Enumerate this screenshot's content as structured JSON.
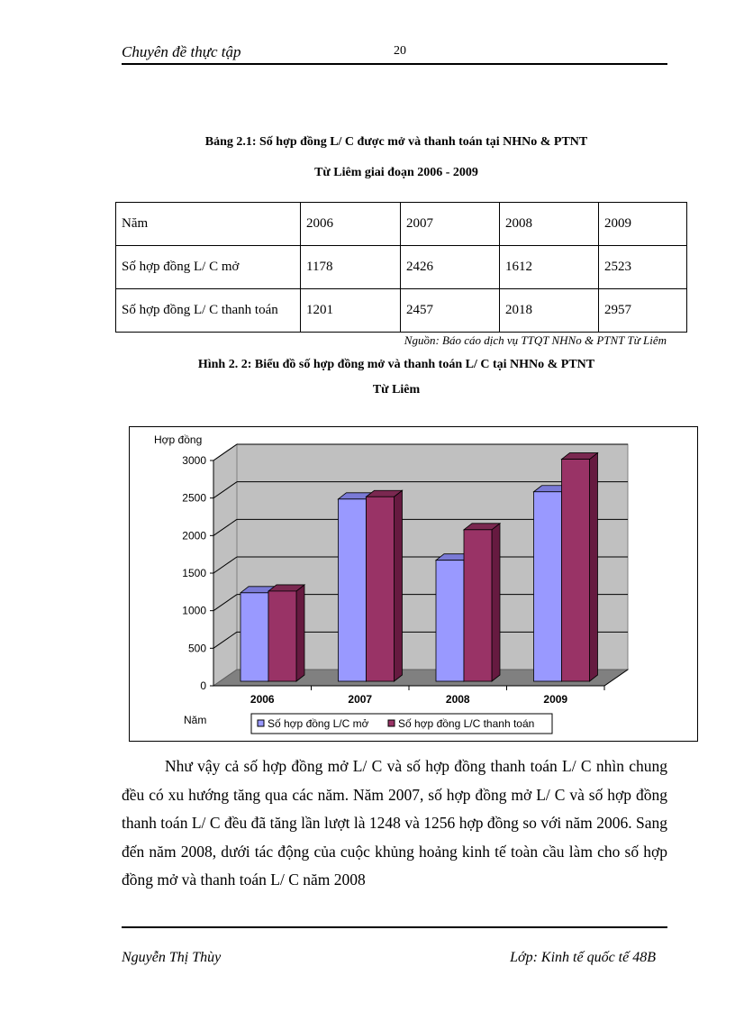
{
  "header": {
    "title": "Chuyên đề thực tập",
    "page_number": "20"
  },
  "table_caption": {
    "line1": "Bảng 2.1: Số hợp đồng L/ C được mở và thanh toán tại NHNo & PTNT",
    "line2": "Từ Liêm giai đoạn 2006 - 2009"
  },
  "table": {
    "header": [
      "Năm",
      "2006",
      "2007",
      "2008",
      "2009"
    ],
    "rows": [
      [
        "Số hợp đồng L/ C mở",
        "1178",
        "2426",
        "1612",
        "2523"
      ],
      [
        "Số hợp đồng L/ C thanh toán",
        "1201",
        "2457",
        "2018",
        "2957"
      ]
    ],
    "source": "Nguồn: Báo cáo dịch vụ TTQT  NHNo & PTNT Từ Liêm"
  },
  "figure_caption": {
    "line1": "Hình 2. 2: Biểu đồ số hợp đồng mở và thanh toán L/ C tại NHNo & PTNT",
    "line2": "Từ Liêm"
  },
  "chart_data": {
    "type": "bar",
    "style": "3d-clustered-column",
    "title": "",
    "xlabel": "Năm",
    "ylabel": "Hợp đồng",
    "categories": [
      "2006",
      "2007",
      "2008",
      "2009"
    ],
    "series": [
      {
        "name": "Số hợp đồng L/C mở",
        "values": [
          1178,
          2426,
          1612,
          2523
        ],
        "color": "#9999ff"
      },
      {
        "name": "Số hợp đồng L/C thanh toán",
        "values": [
          1201,
          2457,
          2018,
          2957
        ],
        "color": "#993366"
      }
    ],
    "ylim": [
      0,
      3000
    ],
    "yticks": [
      0,
      500,
      1000,
      1500,
      2000,
      2500,
      3000
    ],
    "grid": true,
    "legend_position": "bottom",
    "wall_color": "#c0c0c0",
    "floor_color": "#808080"
  },
  "body": {
    "paragraph": "Như vậy cả số hợp đồng mở L/ C và số hợp đồng thanh toán L/ C nhìn chung đều có xu hướng tăng qua các năm. Năm 2007, số hợp đồng mở L/ C và số hợp đồng thanh toán L/ C đều đã tăng lần lượt là 1248 và 1256 hợp đồng so với năm 2006. Sang đến năm 2008, dưới tác động của cuộc khủng hoảng kinh tế toàn cầu làm cho số hợp đồng mở và thanh toán L/ C năm 2008"
  },
  "footer": {
    "author": "Nguyễn Thị Thùy",
    "class": "Lớp: Kinh tế quốc tế 48B"
  }
}
